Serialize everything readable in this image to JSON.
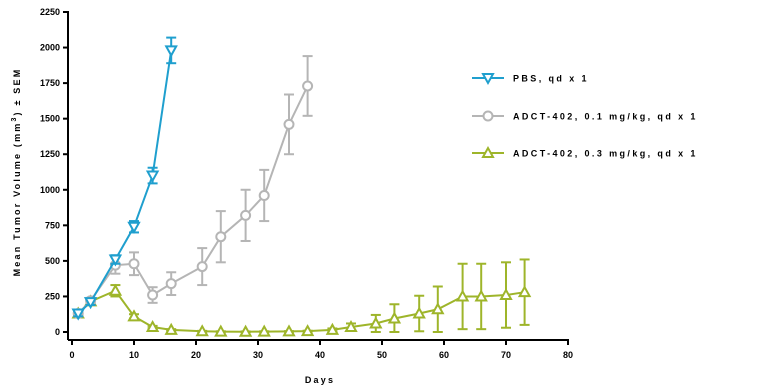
{
  "chart_data": {
    "type": "line",
    "xlabel": "Days",
    "ylabel": "Mean Tumor Volume (mm",
    "ylabel_sup": "3",
    "ylabel_tail": ") ± SEM",
    "xlim": [
      0,
      80
    ],
    "ylim": [
      0,
      2250
    ],
    "xticks": [
      0,
      10,
      20,
      30,
      40,
      50,
      60,
      70,
      80
    ],
    "yticks": [
      0,
      250,
      500,
      750,
      1000,
      1250,
      1500,
      1750,
      2000,
      2250
    ],
    "legend_position": "right",
    "grid": false,
    "series": [
      {
        "name": "PBS, qd x 1",
        "color": "#1f9fce",
        "marker": "triangle-down",
        "x": [
          1,
          3,
          7,
          10,
          13,
          16
        ],
        "y": [
          130,
          210,
          510,
          740,
          1100,
          1980
        ],
        "err": [
          20,
          20,
          30,
          40,
          55,
          90
        ]
      },
      {
        "name": "ADCT-402, 0.1 mg/kg, qd x 1",
        "color": "#b5b5b5",
        "marker": "circle",
        "x": [
          1,
          3,
          7,
          10,
          13,
          16,
          21,
          24,
          28,
          31,
          35,
          38
        ],
        "y": [
          130,
          220,
          470,
          480,
          260,
          340,
          460,
          670,
          820,
          960,
          1460,
          1730
        ],
        "err": [
          20,
          20,
          60,
          80,
          55,
          80,
          130,
          180,
          180,
          180,
          210,
          210
        ]
      },
      {
        "name": "ADCT-402, 0.3 mg/kg, qd x 1",
        "color": "#9eb52a",
        "marker": "triangle-up",
        "x": [
          1,
          3,
          7,
          10,
          13,
          16,
          21,
          24,
          28,
          31,
          35,
          38,
          42,
          45,
          49,
          52,
          56,
          59,
          63,
          66,
          70,
          73
        ],
        "y": [
          130,
          215,
          290,
          110,
          35,
          15,
          5,
          3,
          2,
          3,
          4,
          6,
          15,
          35,
          60,
          95,
          130,
          160,
          250,
          250,
          260,
          280
        ],
        "err": [
          20,
          20,
          40,
          15,
          8,
          5,
          3,
          2,
          2,
          2,
          2,
          3,
          10,
          25,
          60,
          100,
          125,
          160,
          230,
          230,
          230,
          230
        ]
      }
    ]
  }
}
